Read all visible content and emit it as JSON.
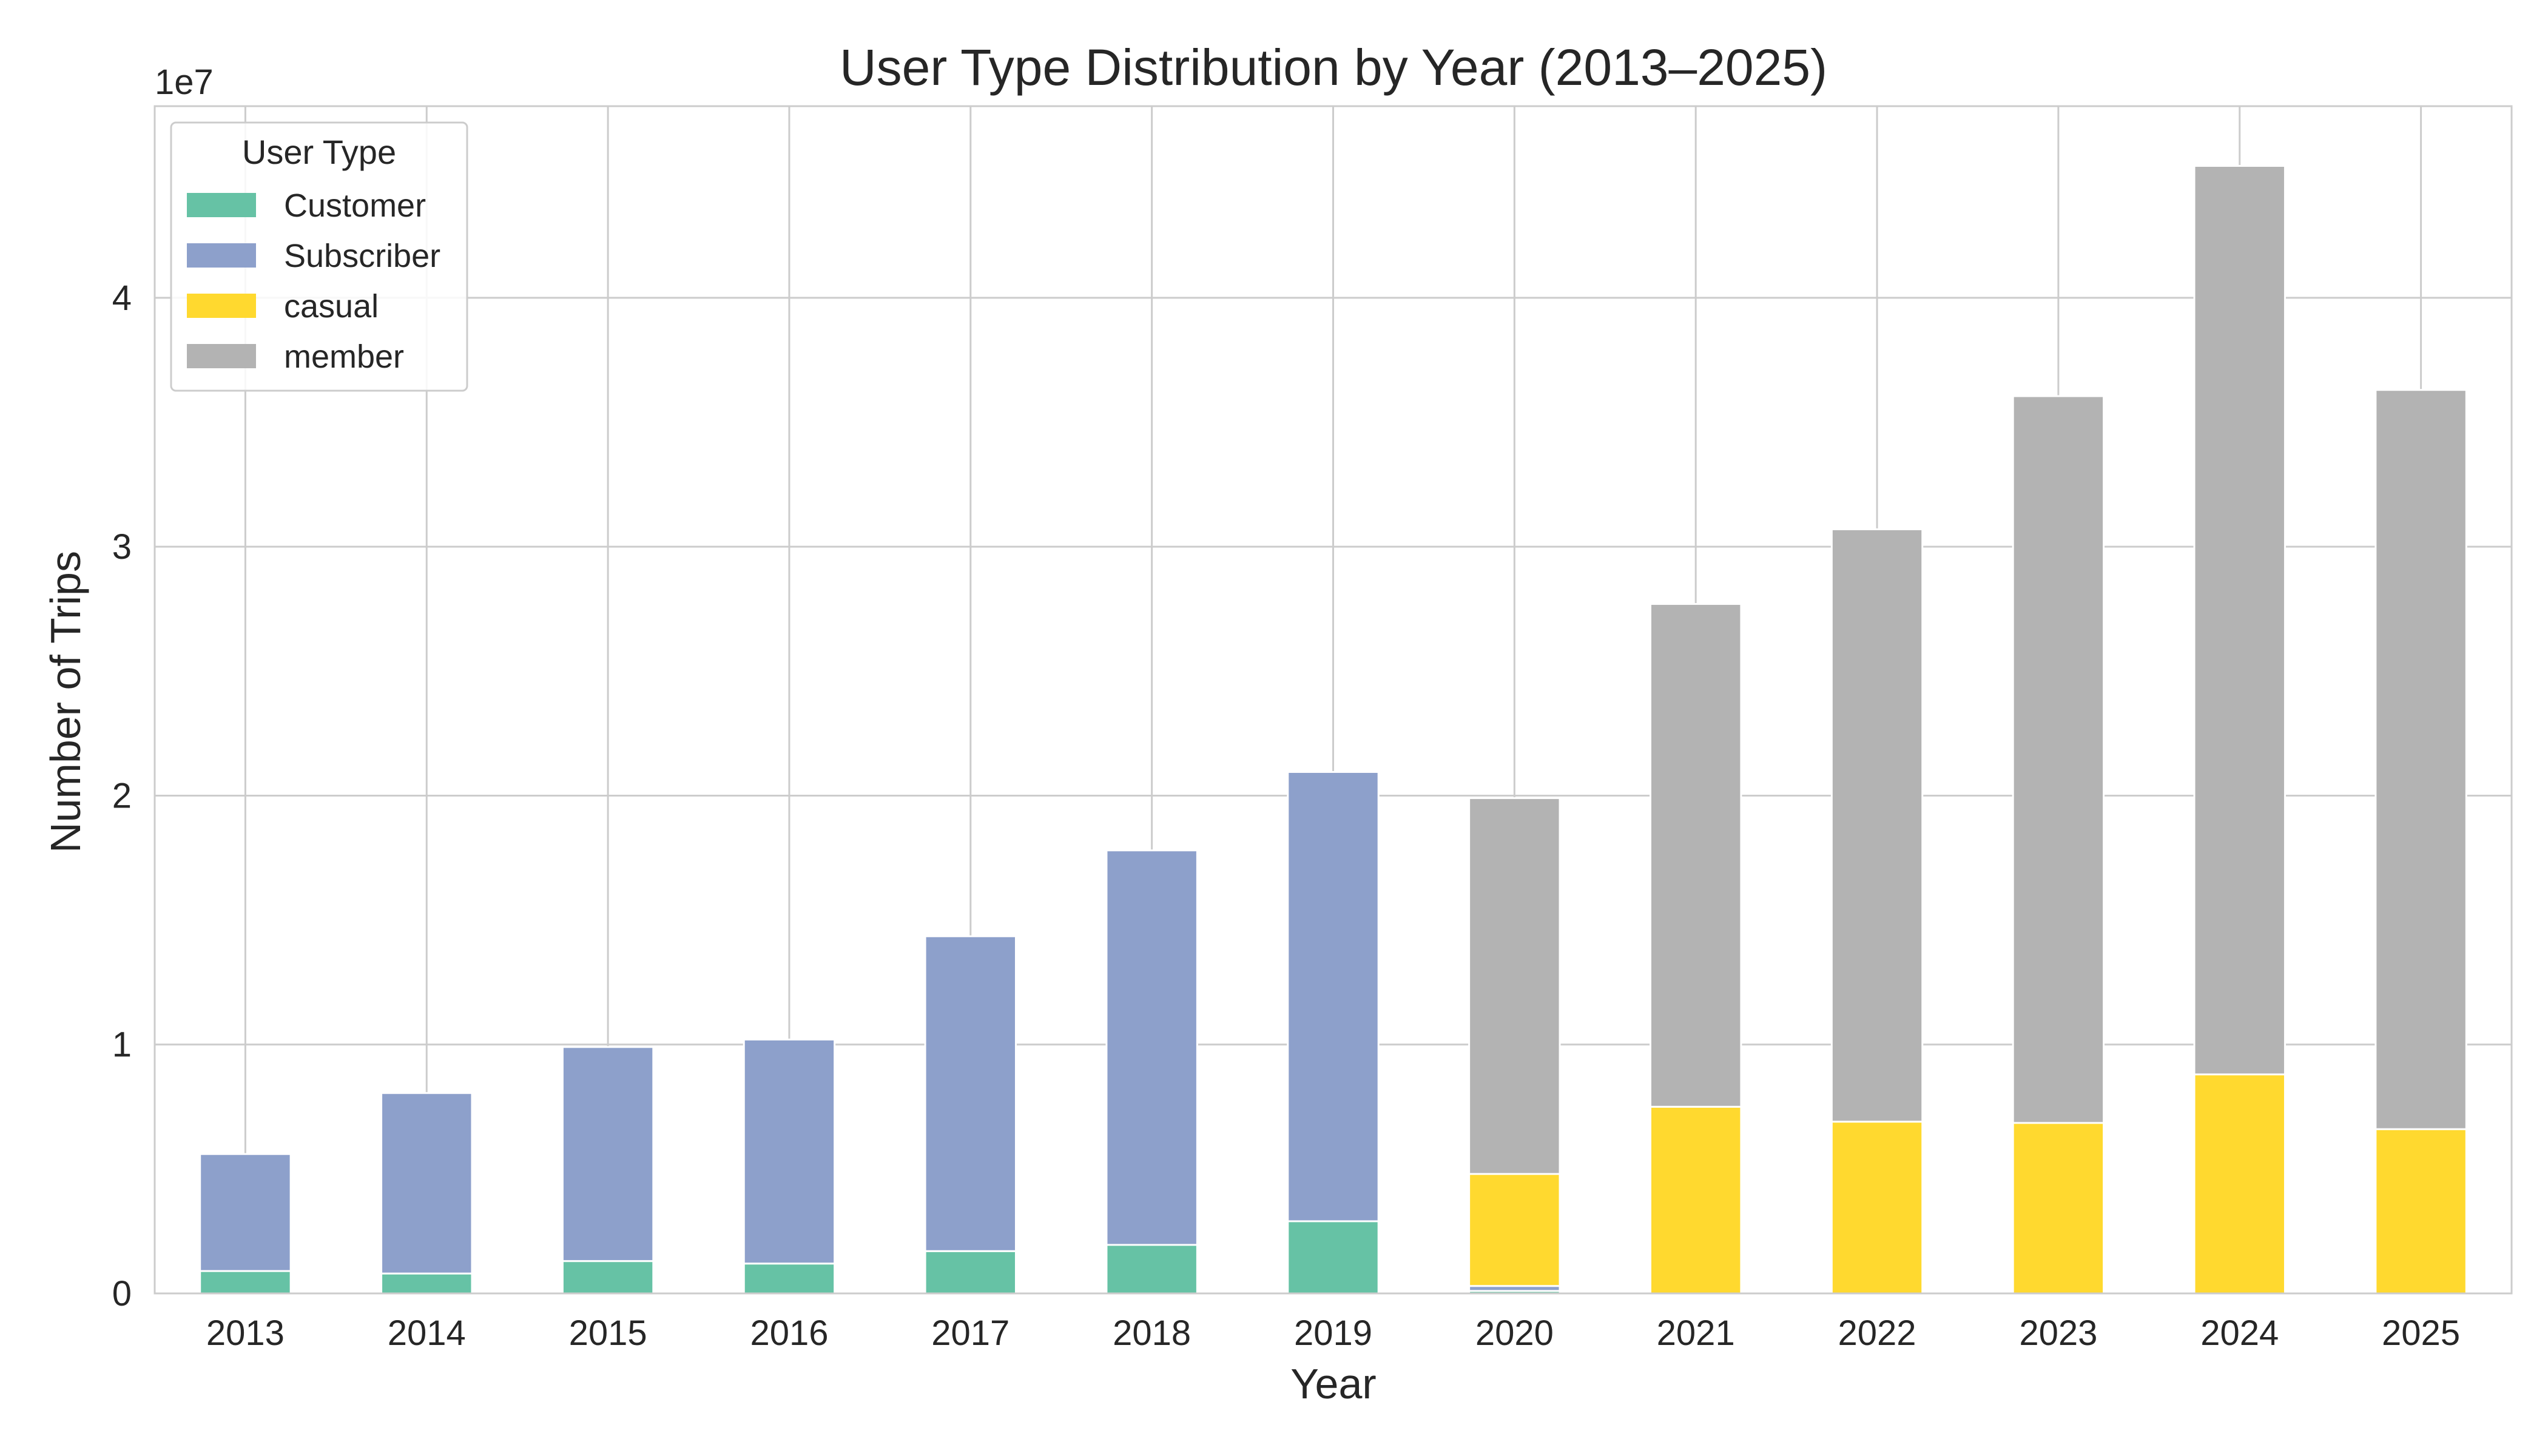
{
  "chart_data": {
    "type": "bar",
    "stacked": true,
    "title": "User Type Distribution by Year (2013–2025)",
    "xlabel": "Year",
    "ylabel": "Number of Trips",
    "offset_label": "1e7",
    "categories": [
      "2013",
      "2014",
      "2015",
      "2016",
      "2017",
      "2018",
      "2019",
      "2020",
      "2021",
      "2022",
      "2023",
      "2024",
      "2025"
    ],
    "series": [
      {
        "name": "Customer",
        "color": "#66c2a5",
        "values": [
          900000,
          800000,
          1300000,
          1200000,
          1700000,
          1950000,
          2900000,
          100000,
          0,
          0,
          0,
          0,
          0
        ]
      },
      {
        "name": "Subscriber",
        "color": "#8da0cb",
        "values": [
          4700000,
          7250000,
          8600000,
          9000000,
          12650000,
          15850000,
          18050000,
          200000,
          0,
          0,
          0,
          0,
          0
        ]
      },
      {
        "name": "casual",
        "color": "#ffd92f",
        "values": [
          0,
          0,
          0,
          0,
          0,
          0,
          0,
          4500000,
          7500000,
          6900000,
          6850000,
          8800000,
          6600000
        ]
      },
      {
        "name": "member",
        "color": "#b3b3b3",
        "values": [
          0,
          0,
          0,
          0,
          0,
          0,
          0,
          15100000,
          20200000,
          23800000,
          29200000,
          36500000,
          29700000
        ]
      }
    ],
    "ylim": [
      0,
      47700000
    ],
    "yticks": [
      0,
      10000000,
      20000000,
      30000000,
      40000000
    ],
    "ytick_labels": [
      "0",
      "1",
      "2",
      "3",
      "4"
    ],
    "legend": {
      "title": "User Type",
      "placement": "top-left"
    },
    "grid": true
  }
}
